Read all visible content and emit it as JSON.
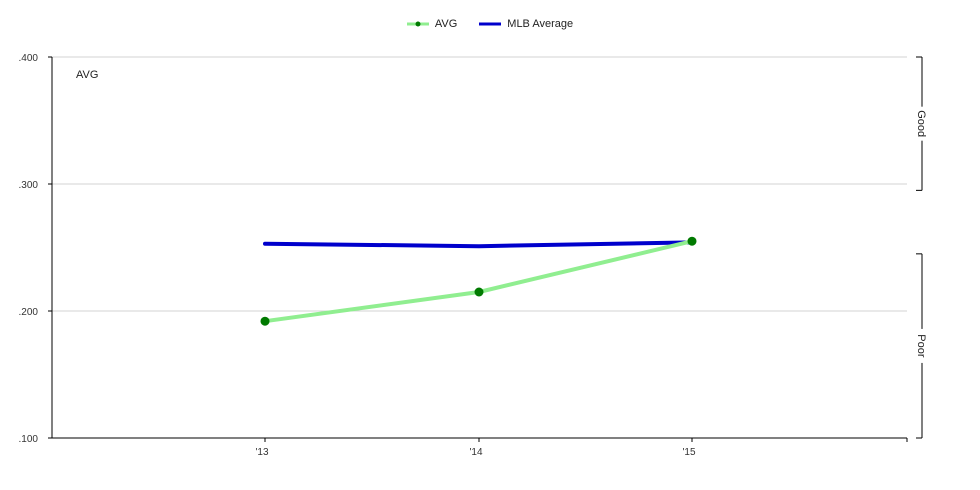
{
  "legend": [
    {
      "name": "AVG",
      "color": "#90EE90",
      "marker_color": "#007a00"
    },
    {
      "name": "MLB Average",
      "color": "#0000cc"
    }
  ],
  "chart_data": {
    "type": "line",
    "title": "",
    "xlabel": "",
    "ylabel": "",
    "panel_label": "AVG",
    "categories": [
      "'13",
      "'14",
      "'15"
    ],
    "ylim": [
      0.1,
      0.4
    ],
    "yticks": [
      ".100",
      ".200",
      ".300",
      ".400"
    ],
    "ytick_values": [
      0.1,
      0.2,
      0.3,
      0.4
    ],
    "grid": true,
    "legend_position": "top-center",
    "series": [
      {
        "name": "AVG",
        "values": [
          0.192,
          0.215,
          0.255
        ],
        "color": "#90EE90",
        "marker_color": "#007a00",
        "markers": true
      },
      {
        "name": "MLB Average",
        "values": [
          0.253,
          0.251,
          0.254
        ],
        "color": "#0000cc",
        "markers": false
      }
    ],
    "bands": [
      {
        "label": "Good",
        "range": [
          0.295,
          0.4
        ]
      },
      {
        "label": "Poor",
        "range": [
          0.1,
          0.245
        ]
      }
    ]
  }
}
